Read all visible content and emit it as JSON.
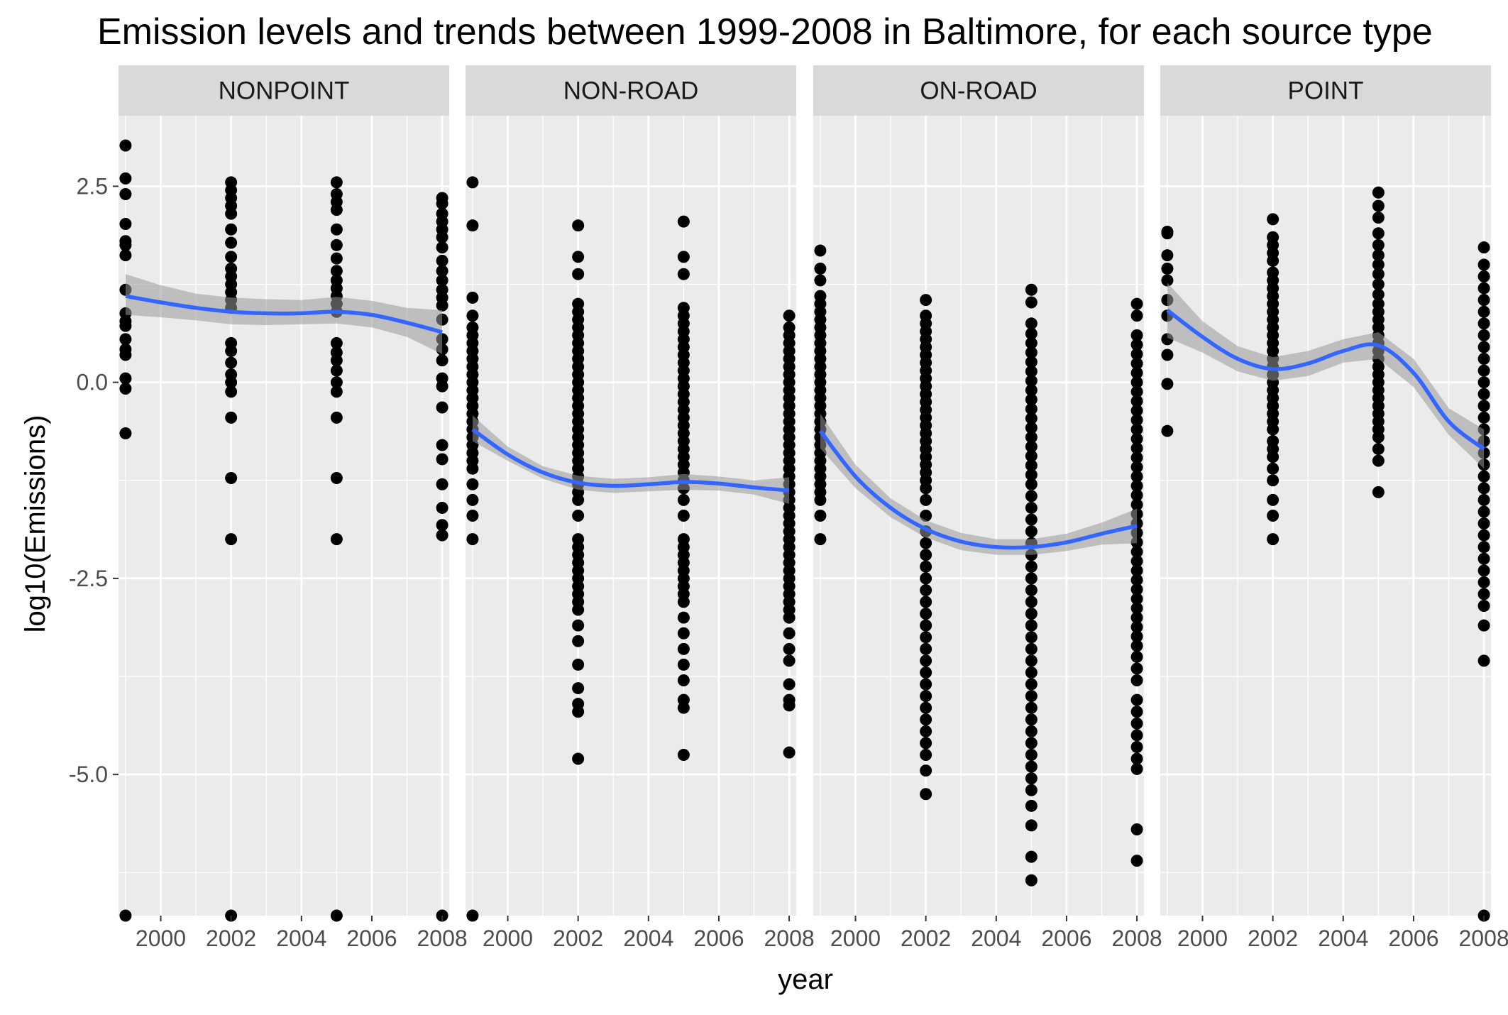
{
  "chart_data": {
    "type": "scatter",
    "title": "Emission levels and trends between 1999-2008 in Baltimore, for each source type",
    "xlabel": "year",
    "ylabel": "log10(Emissions)",
    "xlim": [
      1998.8,
      2008.2
    ],
    "ylim": [
      -6.8,
      3.4
    ],
    "x_ticks": [
      2000,
      2002,
      2004,
      2006,
      2008
    ],
    "x_tick_labels": [
      "2000",
      "2002",
      "2004",
      "2006",
      "2008"
    ],
    "y_ticks": [
      2.5,
      0,
      -2.5,
      -5
    ],
    "y_tick_labels": [
      "2.5",
      "0.0",
      "-2.5",
      "-5.0"
    ],
    "grid": true,
    "panels": [
      {
        "name": "NONPOINT",
        "points": [
          {
            "x": 1999,
            "y": [
              3.02,
              2.6,
              2.4,
              2.02,
              1.8,
              1.75,
              1.62,
              1.18,
              0.88,
              0.78,
              0.72,
              0.55,
              0.42,
              0.35,
              0.05,
              -0.08,
              -0.65,
              -6.8
            ]
          },
          {
            "x": 2002,
            "y": [
              2.55,
              2.45,
              2.35,
              2.25,
              2.15,
              1.95,
              1.78,
              1.6,
              1.45,
              1.35,
              1.25,
              1.15,
              1.05,
              0.95,
              0.5,
              0.4,
              0.25,
              0.1,
              0.0,
              -0.12,
              -0.45,
              -1.22,
              -2.0,
              -6.8
            ]
          },
          {
            "x": 2005,
            "y": [
              2.55,
              2.4,
              2.3,
              2.2,
              1.95,
              1.75,
              1.58,
              1.42,
              1.3,
              1.2,
              1.1,
              1.0,
              0.9,
              0.5,
              0.38,
              0.28,
              0.15,
              0.0,
              -0.12,
              -0.45,
              -1.22,
              -2.0,
              -6.8
            ]
          },
          {
            "x": 2008,
            "y": [
              2.35,
              2.28,
              2.15,
              2.05,
              1.95,
              1.85,
              1.72,
              1.55,
              1.42,
              1.3,
              1.18,
              1.08,
              0.98,
              0.8,
              0.55,
              0.42,
              0.28,
              0.05,
              -0.05,
              -0.32,
              -0.8,
              -0.98,
              -1.3,
              -1.6,
              -1.82,
              -1.95,
              -6.8
            ]
          }
        ],
        "smooth": [
          [
            1999,
            1.1
          ],
          [
            2000,
            1.02
          ],
          [
            2001,
            0.95
          ],
          [
            2002,
            0.9
          ],
          [
            2003,
            0.88
          ],
          [
            2004,
            0.88
          ],
          [
            2005,
            0.9
          ],
          [
            2006,
            0.86
          ],
          [
            2007,
            0.76
          ],
          [
            2008,
            0.64
          ]
        ],
        "band": [
          [
            1999,
            0.86,
            1.38
          ],
          [
            2000,
            0.83,
            1.24
          ],
          [
            2001,
            0.79,
            1.13
          ],
          [
            2002,
            0.74,
            1.08
          ],
          [
            2003,
            0.73,
            1.06
          ],
          [
            2004,
            0.74,
            1.05
          ],
          [
            2005,
            0.75,
            1.09
          ],
          [
            2006,
            0.7,
            1.04
          ],
          [
            2007,
            0.58,
            0.95
          ],
          [
            2008,
            0.36,
            0.92
          ]
        ]
      },
      {
        "name": "NON-ROAD",
        "points": [
          {
            "x": 1999,
            "y": [
              2.55,
              2.0,
              1.08,
              0.85,
              0.7,
              0.6,
              0.5,
              0.4,
              0.3,
              0.2,
              0.1,
              0.0,
              -0.1,
              -0.2,
              -0.3,
              -0.4,
              -0.5,
              -0.6,
              -0.7,
              -0.8,
              -0.9,
              -1.0,
              -1.1,
              -1.3,
              -1.5,
              -1.7,
              -2.0,
              -6.8
            ]
          },
          {
            "x": 2002,
            "y": [
              2.0,
              1.6,
              1.38,
              1.0,
              0.9,
              0.8,
              0.7,
              0.6,
              0.5,
              0.4,
              0.3,
              0.2,
              0.1,
              0.0,
              -0.1,
              -0.2,
              -0.3,
              -0.4,
              -0.5,
              -0.6,
              -0.7,
              -0.8,
              -0.9,
              -1.0,
              -1.1,
              -1.2,
              -1.3,
              -1.4,
              -1.5,
              -1.7,
              -2.0,
              -2.1,
              -2.2,
              -2.3,
              -2.4,
              -2.5,
              -2.6,
              -2.7,
              -2.8,
              -2.9,
              -3.1,
              -3.3,
              -3.6,
              -3.9,
              -4.1,
              -4.2,
              -4.8
            ]
          },
          {
            "x": 2005,
            "y": [
              2.05,
              1.6,
              1.38,
              0.95,
              0.85,
              0.75,
              0.65,
              0.55,
              0.45,
              0.35,
              0.25,
              0.15,
              0.05,
              -0.05,
              -0.15,
              -0.25,
              -0.35,
              -0.45,
              -0.55,
              -0.65,
              -0.75,
              -0.85,
              -0.95,
              -1.05,
              -1.15,
              -1.25,
              -1.35,
              -1.5,
              -1.7,
              -2.0,
              -2.1,
              -2.2,
              -2.3,
              -2.4,
              -2.5,
              -2.6,
              -2.7,
              -2.8,
              -3.0,
              -3.2,
              -3.4,
              -3.6,
              -3.8,
              -4.05,
              -4.15,
              -4.75
            ]
          },
          {
            "x": 2008,
            "y": [
              0.85,
              0.7,
              0.6,
              0.5,
              0.4,
              0.3,
              0.2,
              0.1,
              0.0,
              -0.1,
              -0.2,
              -0.3,
              -0.4,
              -0.5,
              -0.6,
              -0.7,
              -0.8,
              -0.9,
              -1.0,
              -1.1,
              -1.2,
              -1.3,
              -1.4,
              -1.5,
              -1.6,
              -1.7,
              -1.8,
              -1.9,
              -2.0,
              -2.1,
              -2.2,
              -2.3,
              -2.4,
              -2.5,
              -2.6,
              -2.7,
              -2.8,
              -2.9,
              -3.0,
              -3.2,
              -3.4,
              -3.55,
              -3.85,
              -4.05,
              -4.12,
              -4.72
            ]
          }
        ],
        "smooth": [
          [
            1999,
            -0.6
          ],
          [
            2000,
            -0.92
          ],
          [
            2001,
            -1.15
          ],
          [
            2002,
            -1.28
          ],
          [
            2003,
            -1.32
          ],
          [
            2004,
            -1.3
          ],
          [
            2005,
            -1.27
          ],
          [
            2006,
            -1.29
          ],
          [
            2007,
            -1.34
          ],
          [
            2008,
            -1.38
          ]
        ],
        "band": [
          [
            1999,
            -0.75,
            -0.42
          ],
          [
            2000,
            -1.0,
            -0.82
          ],
          [
            2001,
            -1.23,
            -1.07
          ],
          [
            2002,
            -1.37,
            -1.19
          ],
          [
            2003,
            -1.41,
            -1.23
          ],
          [
            2004,
            -1.39,
            -1.21
          ],
          [
            2005,
            -1.37,
            -1.17
          ],
          [
            2006,
            -1.38,
            -1.2
          ],
          [
            2007,
            -1.43,
            -1.25
          ],
          [
            2008,
            -1.55,
            -1.21
          ]
        ]
      },
      {
        "name": "ON-ROAD",
        "points": [
          {
            "x": 1999,
            "y": [
              1.68,
              1.45,
              1.3,
              1.1,
              1.0,
              0.9,
              0.8,
              0.7,
              0.6,
              0.5,
              0.4,
              0.3,
              0.2,
              0.1,
              0.0,
              -0.1,
              -0.2,
              -0.3,
              -0.4,
              -0.5,
              -0.6,
              -0.7,
              -0.8,
              -0.9,
              -1.0,
              -1.1,
              -1.2,
              -1.3,
              -1.4,
              -1.5,
              -1.7,
              -2.0
            ]
          },
          {
            "x": 2002,
            "y": [
              1.05,
              0.85,
              0.75,
              0.65,
              0.55,
              0.45,
              0.35,
              0.25,
              0.15,
              0.05,
              -0.05,
              -0.15,
              -0.25,
              -0.35,
              -0.45,
              -0.55,
              -0.65,
              -0.75,
              -0.85,
              -0.95,
              -1.05,
              -1.15,
              -1.25,
              -1.35,
              -1.5,
              -1.7,
              -1.9,
              -2.05,
              -2.2,
              -2.35,
              -2.5,
              -2.65,
              -2.8,
              -2.95,
              -3.1,
              -3.25,
              -3.4,
              -3.55,
              -3.7,
              -3.85,
              -4.0,
              -4.15,
              -4.3,
              -4.45,
              -4.6,
              -4.75,
              -4.95,
              -5.25
            ]
          },
          {
            "x": 2005,
            "y": [
              1.18,
              1.02,
              0.75,
              0.62,
              0.5,
              0.38,
              0.26,
              0.14,
              0.02,
              -0.1,
              -0.22,
              -0.34,
              -0.46,
              -0.58,
              -0.7,
              -0.82,
              -0.94,
              -1.06,
              -1.18,
              -1.3,
              -1.45,
              -1.6,
              -1.75,
              -1.9,
              -2.05,
              -2.2,
              -2.35,
              -2.5,
              -2.65,
              -2.8,
              -2.95,
              -3.1,
              -3.25,
              -3.4,
              -3.55,
              -3.7,
              -3.85,
              -4.0,
              -4.15,
              -4.3,
              -4.45,
              -4.6,
              -4.75,
              -4.9,
              -5.05,
              -5.2,
              -5.4,
              -5.65,
              -6.05,
              -6.35
            ]
          },
          {
            "x": 2008,
            "y": [
              1.0,
              0.85,
              0.6,
              0.48,
              0.36,
              0.24,
              0.12,
              0.0,
              -0.12,
              -0.24,
              -0.36,
              -0.48,
              -0.6,
              -0.72,
              -0.84,
              -0.96,
              -1.08,
              -1.2,
              -1.32,
              -1.44,
              -1.56,
              -1.68,
              -1.8,
              -1.92,
              -2.04,
              -2.16,
              -2.28,
              -2.4,
              -2.52,
              -2.64,
              -2.76,
              -2.88,
              -3.0,
              -3.12,
              -3.24,
              -3.36,
              -3.5,
              -3.65,
              -3.8,
              -4.05,
              -4.2,
              -4.35,
              -4.5,
              -4.65,
              -4.8,
              -4.93,
              -5.7,
              -6.1
            ]
          }
        ],
        "smooth": [
          [
            1999,
            -0.62
          ],
          [
            2000,
            -1.2
          ],
          [
            2001,
            -1.6
          ],
          [
            2002,
            -1.87
          ],
          [
            2003,
            -2.03
          ],
          [
            2004,
            -2.1
          ],
          [
            2005,
            -2.1
          ],
          [
            2006,
            -2.04
          ],
          [
            2007,
            -1.93
          ],
          [
            2008,
            -1.83
          ]
        ],
        "band": [
          [
            1999,
            -0.84,
            -0.4
          ],
          [
            2000,
            -1.35,
            -1.05
          ],
          [
            2001,
            -1.72,
            -1.48
          ],
          [
            2002,
            -1.98,
            -1.76
          ],
          [
            2003,
            -2.14,
            -1.92
          ],
          [
            2004,
            -2.2,
            -2.0
          ],
          [
            2005,
            -2.2,
            -2.0
          ],
          [
            2006,
            -2.15,
            -1.93
          ],
          [
            2007,
            -2.07,
            -1.79
          ],
          [
            2008,
            -2.05,
            -1.61
          ]
        ]
      },
      {
        "name": "POINT",
        "points": [
          {
            "x": 1999,
            "y": [
              1.92,
              1.9,
              1.62,
              1.45,
              1.3,
              1.05,
              0.85,
              0.55,
              0.35,
              -0.02,
              -0.62
            ]
          },
          {
            "x": 2002,
            "y": [
              2.08,
              1.85,
              1.75,
              1.65,
              1.55,
              1.4,
              1.3,
              1.2,
              1.1,
              1.0,
              0.9,
              0.8,
              0.7,
              0.6,
              0.5,
              0.4,
              0.3,
              0.2,
              0.1,
              0.0,
              -0.1,
              -0.2,
              -0.3,
              -0.4,
              -0.5,
              -0.6,
              -0.75,
              -0.85,
              -0.95,
              -1.1,
              -1.25,
              -1.5,
              -1.7,
              -2.0
            ]
          },
          {
            "x": 2005,
            "y": [
              2.42,
              2.25,
              2.1,
              1.9,
              1.75,
              1.62,
              1.5,
              1.38,
              1.25,
              1.12,
              1.0,
              0.9,
              0.8,
              0.7,
              0.6,
              0.5,
              0.4,
              0.3,
              0.2,
              0.1,
              0.0,
              -0.1,
              -0.2,
              -0.3,
              -0.4,
              -0.5,
              -0.6,
              -0.7,
              -0.85,
              -1.0,
              -1.4
            ]
          },
          {
            "x": 2008,
            "y": [
              1.72,
              1.5,
              1.35,
              1.2,
              1.05,
              0.9,
              0.75,
              0.6,
              0.45,
              0.3,
              0.15,
              0.0,
              -0.15,
              -0.3,
              -0.45,
              -0.6,
              -0.75,
              -0.9,
              -1.05,
              -1.2,
              -1.35,
              -1.5,
              -1.65,
              -1.8,
              -1.95,
              -2.1,
              -2.25,
              -2.4,
              -2.55,
              -2.7,
              -2.85,
              -3.1,
              -3.55,
              -6.8
            ]
          }
        ],
        "smooth": [
          [
            1999,
            0.92
          ],
          [
            2000,
            0.58
          ],
          [
            2001,
            0.3
          ],
          [
            2002,
            0.17
          ],
          [
            2003,
            0.24
          ],
          [
            2004,
            0.4
          ],
          [
            2005,
            0.47
          ],
          [
            2006,
            0.12
          ],
          [
            2007,
            -0.5
          ],
          [
            2008,
            -0.85
          ]
        ],
        "band": [
          [
            1999,
            0.57,
            1.27
          ],
          [
            2000,
            0.38,
            0.78
          ],
          [
            2001,
            0.14,
            0.46
          ],
          [
            2002,
            0.02,
            0.32
          ],
          [
            2003,
            0.08,
            0.4
          ],
          [
            2004,
            0.25,
            0.55
          ],
          [
            2005,
            0.3,
            0.64
          ],
          [
            2006,
            -0.06,
            0.3
          ],
          [
            2007,
            -0.67,
            -0.33
          ],
          [
            2008,
            -1.1,
            -0.6
          ]
        ]
      }
    ]
  },
  "colors": {
    "panel_bg": "#ebebeb",
    "strip_bg": "#d9d9d9",
    "grid": "#ffffff",
    "point": "#000000",
    "smooth_line": "#3366ff",
    "band_fill": "#999999",
    "tick_text": "#4d4d4d",
    "tick_mark": "#333333"
  }
}
